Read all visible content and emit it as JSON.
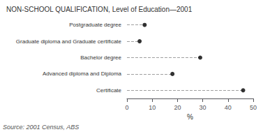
{
  "chart_data": {
    "type": "lollipop",
    "orientation": "horizontal",
    "title": "NON-SCHOOL QUALIFICATION, Level of Education—2001",
    "categories": [
      "Certificate",
      "Advanced diploma and Diploma",
      "Bachelor degree",
      "Graduate diploma and Graduate certificate",
      "Postgraduate degree"
    ],
    "values": [
      46.0,
      18.0,
      29.0,
      5.0,
      7.0
    ],
    "xlabel": "%",
    "xlim": [
      0,
      50
    ],
    "xticks": [
      0,
      10,
      20,
      30,
      40,
      50
    ],
    "source": "Source: 2001 Census, ABS",
    "color": "#000000",
    "marker": "circle",
    "line_style": "dashed",
    "grid": false
  }
}
